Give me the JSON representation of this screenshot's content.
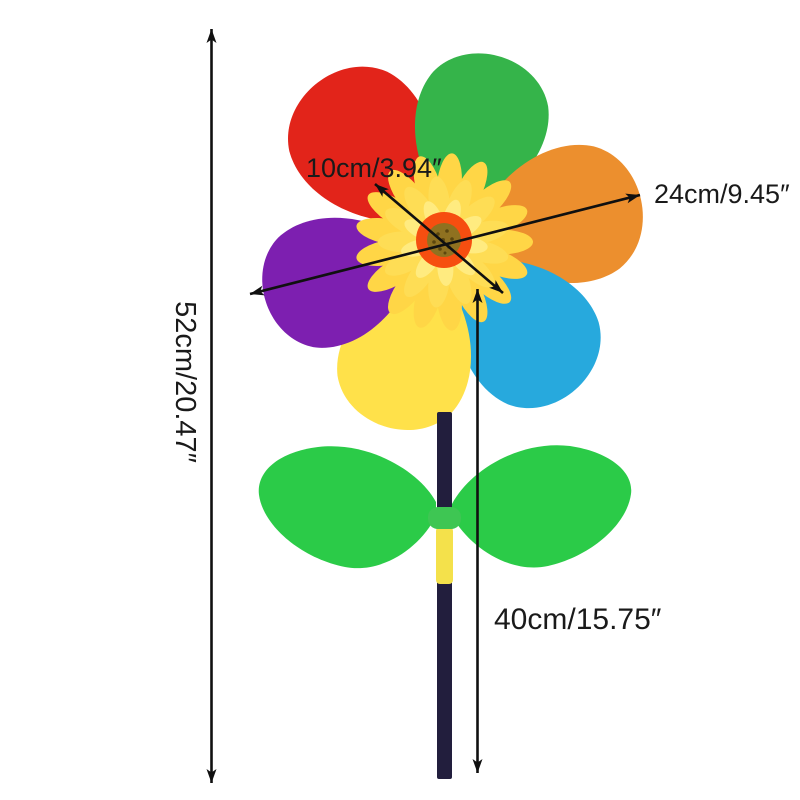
{
  "diagram": {
    "kind": "product-size-diagram",
    "subject": "rainbow sunflower windmill pinwheel on stick with leaves"
  },
  "dimensions": {
    "flower_center": "10cm/3.94″",
    "wheel": "24cm/9.45″",
    "total_height": "52cm/20.47″",
    "pole_height": "40cm/15.75″"
  },
  "annotation": {
    "line_color": "#101010",
    "text_color": "#1a1a1a"
  },
  "colors": {
    "background": "#ffffff",
    "petal_red": "#e2241a",
    "petal_green": "#35b44a",
    "petal_orange": "#ec8f2e",
    "petal_cyan": "#27a9dd",
    "petal_yellow": "#ffe14a",
    "petal_purple": "#7d1fb0",
    "flower_outer": "#ffd646",
    "flower_mid": "#fedd55",
    "flower_inner": "#ffeb80",
    "flower_ring": "#f64e10",
    "flower_disk": "#8f7120",
    "flower_disk_speckle": "#5c470e",
    "leaf_green": "#2bcb48",
    "clip_green": "#3ec653",
    "pole_navy": "#221e3d",
    "pole_yellow": "#f4e14b"
  }
}
